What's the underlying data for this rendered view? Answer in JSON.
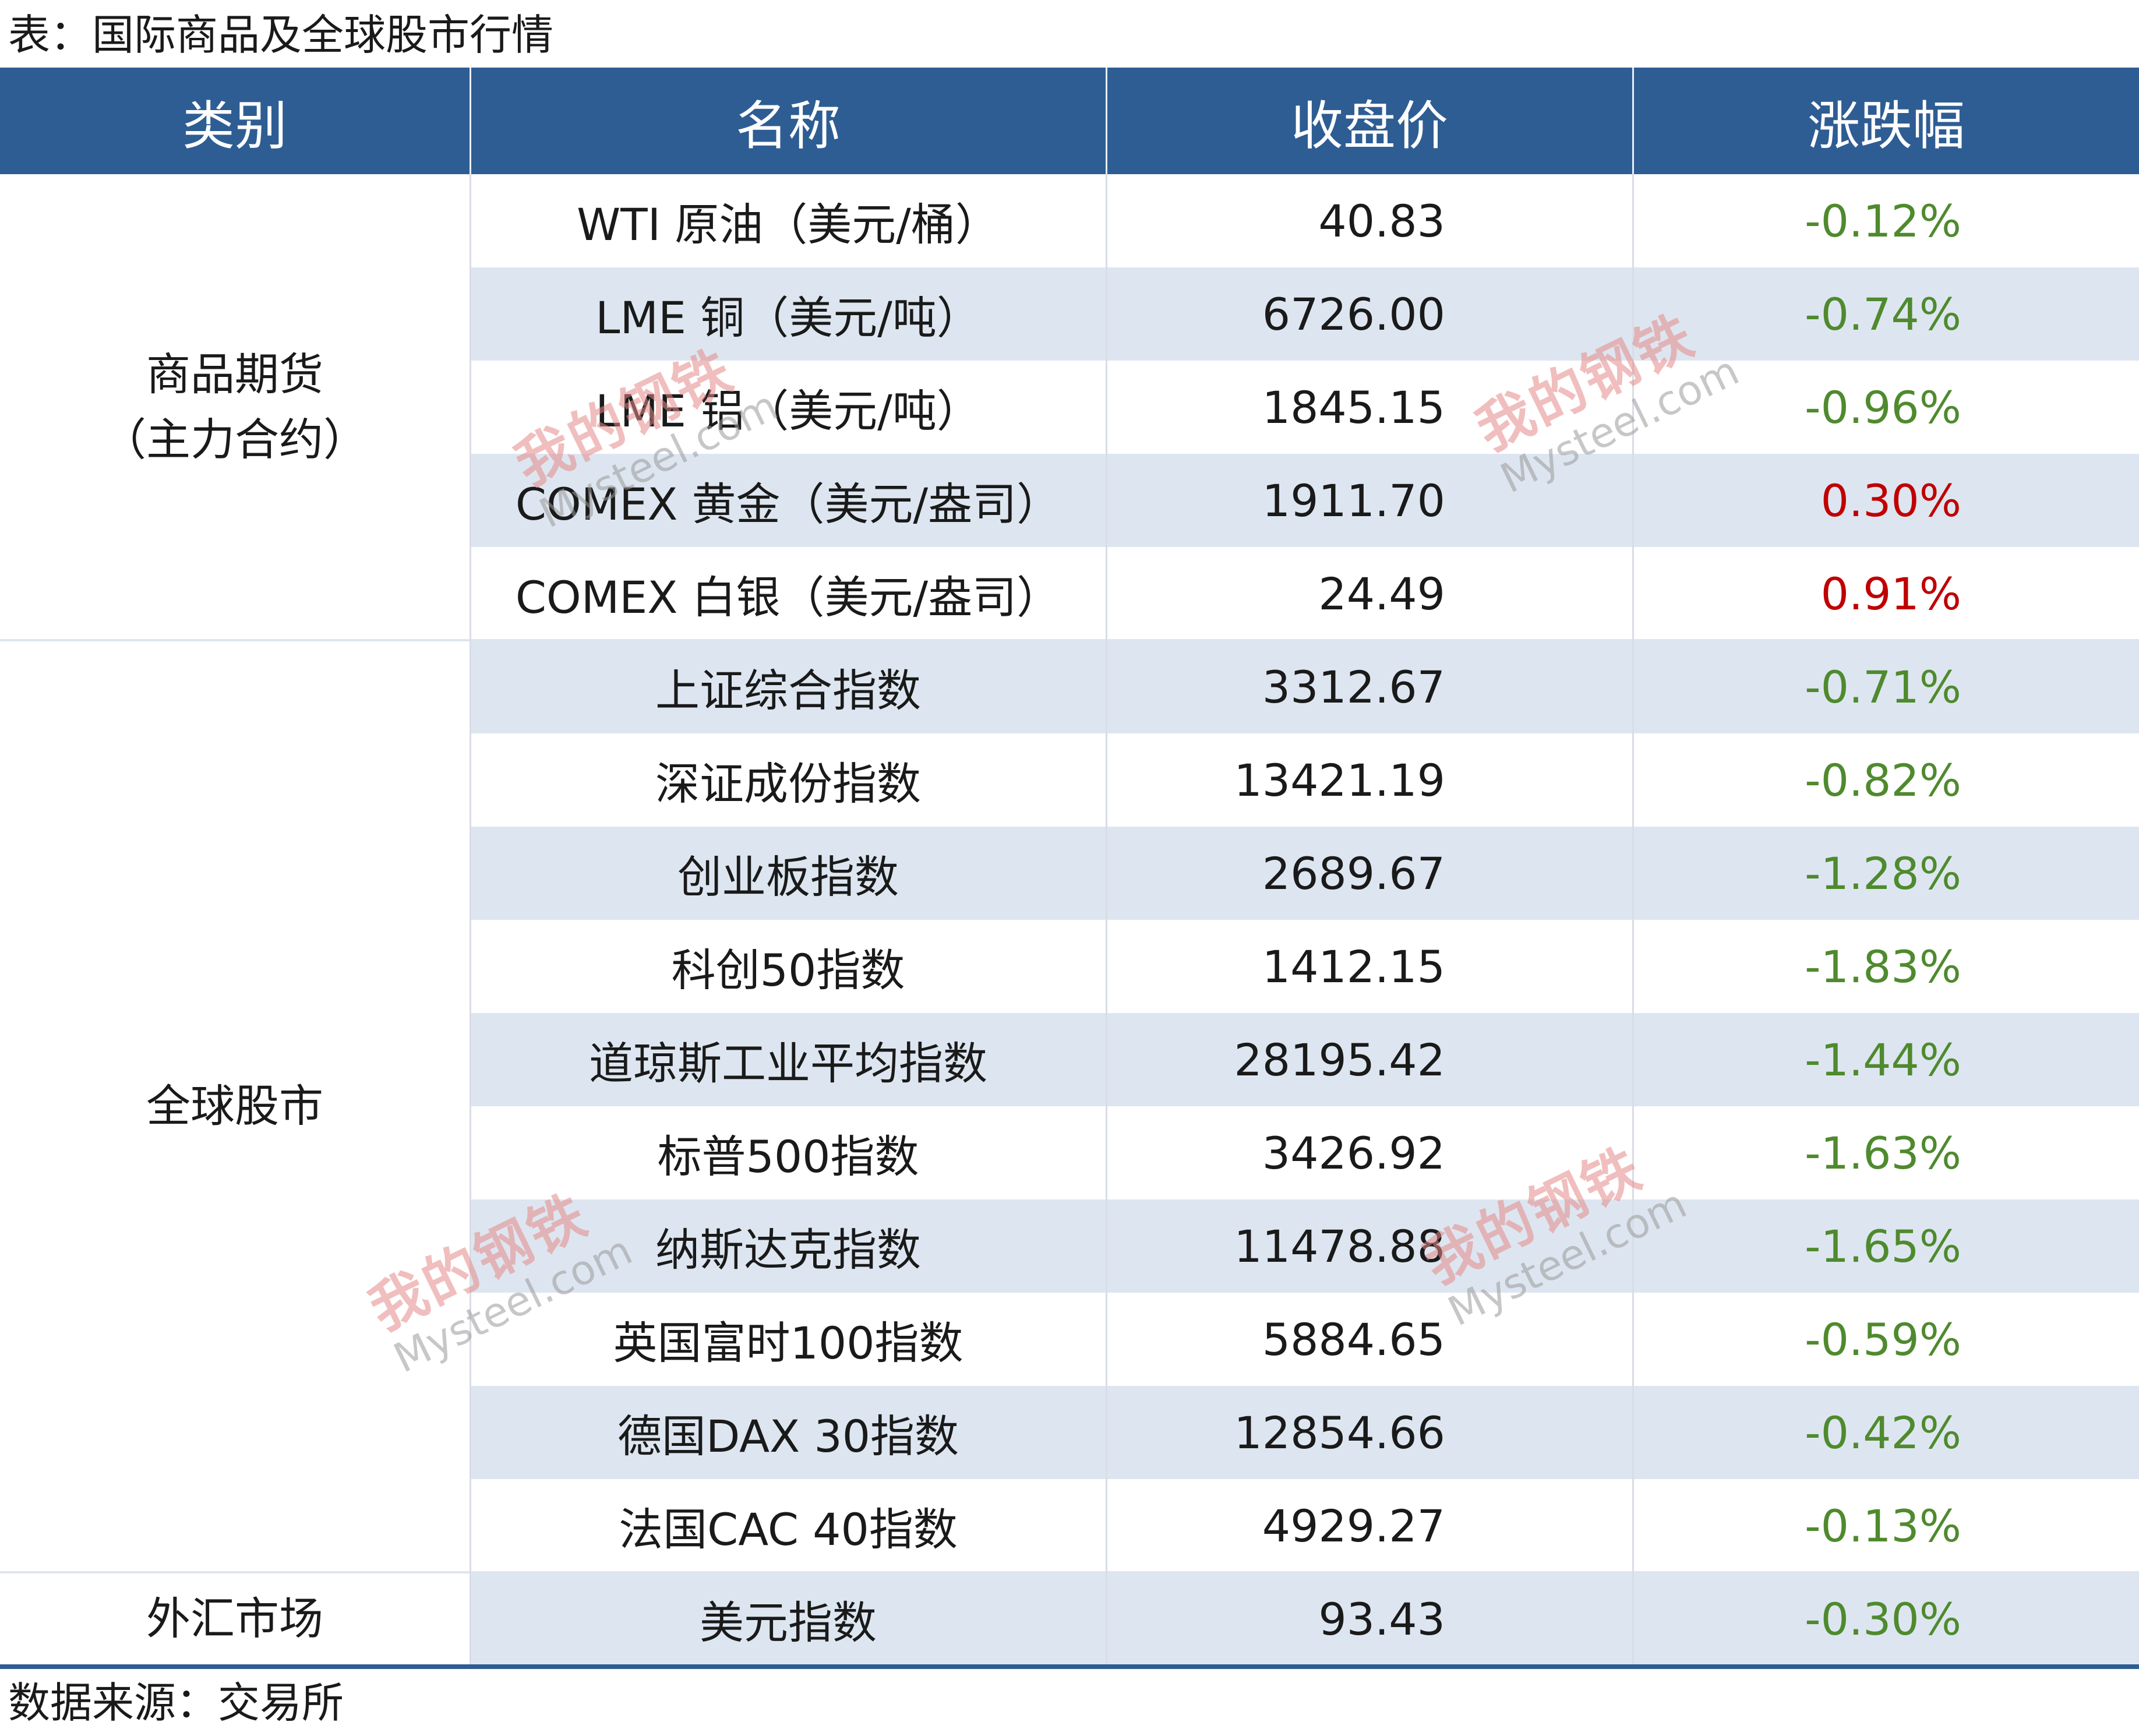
{
  "title": "表：国际商品及全球股市行情",
  "headers": [
    "类别",
    "名称",
    "收盘价",
    "涨跌幅"
  ],
  "groups": [
    {
      "category_lines": [
        "商品期货",
        "（主力合约）"
      ],
      "rows": [
        {
          "name": "WTI 原油（美元/桶）",
          "price": "40.83",
          "change": "-0.12%",
          "direction": "down"
        },
        {
          "name": "LME 铜（美元/吨）",
          "price": "6726.00",
          "change": "-0.74%",
          "direction": "down"
        },
        {
          "name": "LME 铝（美元/吨）",
          "price": "1845.15",
          "change": "-0.96%",
          "direction": "down"
        },
        {
          "name": "COMEX 黄金（美元/盎司）",
          "price": "1911.70",
          "change": "0.30%",
          "direction": "up"
        },
        {
          "name": "COMEX 白银（美元/盎司）",
          "price": "24.49",
          "change": "0.91%",
          "direction": "up"
        }
      ]
    },
    {
      "category_lines": [
        "全球股市"
      ],
      "rows": [
        {
          "name": "上证综合指数",
          "price": "3312.67",
          "change": "-0.71%",
          "direction": "down"
        },
        {
          "name": "深证成份指数",
          "price": "13421.19",
          "change": "-0.82%",
          "direction": "down"
        },
        {
          "name": "创业板指数",
          "price": "2689.67",
          "change": "-1.28%",
          "direction": "down"
        },
        {
          "name": "科创50指数",
          "price": "1412.15",
          "change": "-1.83%",
          "direction": "down"
        },
        {
          "name": "道琼斯工业平均指数",
          "price": "28195.42",
          "change": "-1.44%",
          "direction": "down"
        },
        {
          "name": "标普500指数",
          "price": "3426.92",
          "change": "-1.63%",
          "direction": "down"
        },
        {
          "name": "纳斯达克指数",
          "price": "11478.88",
          "change": "-1.65%",
          "direction": "down"
        },
        {
          "name": "英国富时100指数",
          "price": "5884.65",
          "change": "-0.59%",
          "direction": "down"
        },
        {
          "name": "德国DAX 30指数",
          "price": "12854.66",
          "change": "-0.42%",
          "direction": "down"
        },
        {
          "name": "法国CAC 40指数",
          "price": "4929.27",
          "change": "-0.13%",
          "direction": "down"
        }
      ]
    },
    {
      "category_lines": [
        "外汇市场"
      ],
      "rows": [
        {
          "name": "美元指数",
          "price": "93.43",
          "change": "-0.30%",
          "direction": "down"
        }
      ]
    }
  ],
  "source": "数据来源：交易所",
  "watermark": {
    "cn": "我的钢铁",
    "en": "Mysteel.com"
  },
  "colors": {
    "header_bg": "#2e5d93",
    "row_shade": "#dde6f0",
    "negative": "#4f8a2e",
    "positive": "#c00000"
  }
}
